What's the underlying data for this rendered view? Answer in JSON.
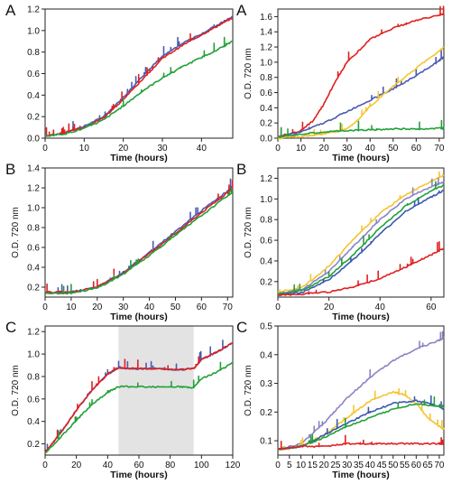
{
  "panel_labels": [
    "A",
    "B",
    "C",
    "A",
    "B",
    "C"
  ],
  "chart_data": [
    {
      "type": "line",
      "panel": "A",
      "xlabel": "Time (hours)",
      "ylabel": "",
      "xlim": [
        0,
        48
      ],
      "ylim": [
        0,
        1.2
      ],
      "xticks": [
        0,
        10,
        20,
        30,
        40
      ],
      "yticks": [
        0,
        0.2,
        0.4,
        0.6,
        0.8,
        1.0,
        1.2
      ],
      "tick_labels_y": [
        "0.0",
        "0.2",
        "0.4",
        "0.6",
        "0.8",
        "1.0",
        "1.2"
      ],
      "series": [
        {
          "color": "#4a5bb0",
          "x": [
            0,
            5,
            10,
            15,
            20,
            25,
            30,
            35,
            40,
            45,
            48
          ],
          "y": [
            0.02,
            0.05,
            0.11,
            0.2,
            0.38,
            0.58,
            0.76,
            0.88,
            0.97,
            1.07,
            1.13
          ]
        },
        {
          "color": "#e02020",
          "x": [
            0,
            5,
            10,
            15,
            20,
            25,
            30,
            35,
            40,
            45,
            48
          ],
          "y": [
            0.02,
            0.05,
            0.1,
            0.19,
            0.36,
            0.55,
            0.74,
            0.86,
            0.96,
            1.06,
            1.12
          ]
        },
        {
          "color": "#22a038",
          "x": [
            0,
            5,
            10,
            15,
            20,
            25,
            30,
            35,
            40,
            45,
            48
          ],
          "y": [
            0.02,
            0.04,
            0.09,
            0.17,
            0.3,
            0.44,
            0.56,
            0.66,
            0.75,
            0.84,
            0.9
          ]
        }
      ]
    },
    {
      "type": "line",
      "panel": "B",
      "xlabel": "Time (hours)",
      "ylabel": "O.D. 720 nm",
      "xlim": [
        0,
        72
      ],
      "ylim": [
        0.1,
        1.4
      ],
      "xticks": [
        0,
        10,
        20,
        30,
        40,
        50,
        60,
        70
      ],
      "yticks": [
        0.2,
        0.4,
        0.6,
        0.8,
        1.0,
        1.2,
        1.4
      ],
      "tick_labels_y": [
        "0.2",
        "0.4",
        "0.6",
        "0.8",
        "1.0",
        "1.2",
        "1.4"
      ],
      "series": [
        {
          "color": "#4a5bb0",
          "x": [
            0,
            10,
            20,
            30,
            40,
            50,
            60,
            70,
            72
          ],
          "y": [
            0.15,
            0.15,
            0.2,
            0.35,
            0.55,
            0.76,
            0.97,
            1.17,
            1.22
          ]
        },
        {
          "color": "#e02020",
          "x": [
            0,
            10,
            20,
            30,
            40,
            50,
            60,
            70,
            72
          ],
          "y": [
            0.15,
            0.15,
            0.2,
            0.34,
            0.54,
            0.74,
            0.95,
            1.15,
            1.19
          ]
        },
        {
          "color": "#22a038",
          "x": [
            0,
            10,
            20,
            30,
            40,
            50,
            60,
            70,
            72
          ],
          "y": [
            0.14,
            0.14,
            0.19,
            0.33,
            0.52,
            0.72,
            0.92,
            1.12,
            1.16
          ]
        }
      ]
    },
    {
      "type": "line",
      "panel": "C",
      "xlabel": "Time (hours)",
      "ylabel": "O.D. 720 nm",
      "xlim": [
        0,
        120
      ],
      "ylim": [
        0.1,
        1.25
      ],
      "xticks": [
        0,
        20,
        40,
        60,
        80,
        100,
        120
      ],
      "yticks": [
        0.2,
        0.4,
        0.6,
        0.8,
        1.0,
        1.2
      ],
      "tick_labels_y": [
        "0.2",
        "0.4",
        "0.6",
        "0.8",
        "1.0",
        "1.2"
      ],
      "shaded_region": [
        47,
        95
      ],
      "series": [
        {
          "color": "#4a5bb0",
          "x": [
            0,
            10,
            20,
            30,
            40,
            47,
            55,
            70,
            85,
            95,
            100,
            110,
            120
          ],
          "y": [
            0.12,
            0.3,
            0.5,
            0.68,
            0.82,
            0.88,
            0.87,
            0.87,
            0.86,
            0.87,
            0.95,
            1.02,
            1.1
          ]
        },
        {
          "color": "#e02020",
          "x": [
            0,
            10,
            20,
            30,
            40,
            47,
            55,
            70,
            85,
            95,
            100,
            110,
            120
          ],
          "y": [
            0.12,
            0.3,
            0.5,
            0.68,
            0.82,
            0.88,
            0.87,
            0.87,
            0.86,
            0.87,
            0.95,
            1.02,
            1.1
          ]
        },
        {
          "color": "#22a038",
          "x": [
            0,
            10,
            20,
            30,
            40,
            47,
            55,
            70,
            85,
            95,
            100,
            110,
            120
          ],
          "y": [
            0.12,
            0.26,
            0.41,
            0.55,
            0.66,
            0.71,
            0.71,
            0.71,
            0.71,
            0.7,
            0.78,
            0.84,
            0.92
          ]
        }
      ]
    },
    {
      "type": "line",
      "panel": "A",
      "xlabel": "Time (hours)",
      "ylabel": "O.D. 720 nm",
      "xlim": [
        0,
        72
      ],
      "ylim": [
        0,
        1.7
      ],
      "xticks": [
        0,
        10,
        20,
        30,
        40,
        50,
        60,
        70
      ],
      "yticks": [
        0,
        0.2,
        0.4,
        0.6,
        0.8,
        1.0,
        1.2,
        1.4,
        1.6
      ],
      "tick_labels_y": [
        "0.0",
        "0.2",
        "0.4",
        "0.6",
        "0.8",
        "1.0",
        "1.2",
        "1.4",
        "1.6"
      ],
      "series": [
        {
          "color": "#e02020",
          "x": [
            0,
            10,
            15,
            20,
            25,
            30,
            40,
            50,
            60,
            70,
            72
          ],
          "y": [
            0.02,
            0.1,
            0.22,
            0.45,
            0.75,
            1.0,
            1.3,
            1.45,
            1.55,
            1.62,
            1.64
          ]
        },
        {
          "color": "#4a5bb0",
          "x": [
            0,
            10,
            20,
            30,
            40,
            50,
            60,
            70,
            72
          ],
          "y": [
            0.02,
            0.08,
            0.2,
            0.35,
            0.5,
            0.65,
            0.82,
            1.02,
            1.07
          ]
        },
        {
          "color": "#f4c430",
          "x": [
            0,
            10,
            20,
            30,
            35,
            40,
            50,
            60,
            70,
            72
          ],
          "y": [
            0.0,
            0.02,
            0.05,
            0.12,
            0.25,
            0.42,
            0.68,
            0.92,
            1.15,
            1.2
          ]
        },
        {
          "color": "#22a038",
          "x": [
            0,
            10,
            20,
            30,
            40,
            50,
            60,
            70,
            72
          ],
          "y": [
            0.02,
            0.05,
            0.08,
            0.1,
            0.11,
            0.12,
            0.12,
            0.13,
            0.13
          ]
        }
      ]
    },
    {
      "type": "line",
      "panel": "B",
      "xlabel": "Time (hours)",
      "ylabel": "O.D. 720 nm",
      "xlim": [
        0,
        65
      ],
      "ylim": [
        0.05,
        1.3
      ],
      "xticks": [
        0,
        20,
        40,
        60
      ],
      "yticks": [
        0.2,
        0.4,
        0.6,
        0.8,
        1.0,
        1.2
      ],
      "tick_labels_y": [
        "0.2",
        "0.4",
        "0.6",
        "0.8",
        "1.0",
        "1.2"
      ],
      "series": [
        {
          "color": "#f4c430",
          "x": [
            0,
            10,
            20,
            30,
            40,
            50,
            60,
            65
          ],
          "y": [
            0.1,
            0.15,
            0.35,
            0.62,
            0.86,
            1.04,
            1.17,
            1.23
          ]
        },
        {
          "color": "#8a84c4",
          "x": [
            0,
            10,
            20,
            30,
            40,
            50,
            60,
            65
          ],
          "y": [
            0.08,
            0.13,
            0.3,
            0.55,
            0.8,
            1.0,
            1.12,
            1.16
          ]
        },
        {
          "color": "#22a038",
          "x": [
            0,
            10,
            20,
            30,
            40,
            50,
            60,
            65
          ],
          "y": [
            0.08,
            0.12,
            0.25,
            0.47,
            0.72,
            0.93,
            1.08,
            1.13
          ]
        },
        {
          "color": "#3d58b0",
          "x": [
            0,
            10,
            20,
            30,
            40,
            50,
            60,
            65
          ],
          "y": [
            0.07,
            0.1,
            0.22,
            0.42,
            0.66,
            0.88,
            1.02,
            1.08
          ]
        },
        {
          "color": "#e02020",
          "x": [
            0,
            10,
            20,
            30,
            40,
            50,
            60,
            65
          ],
          "y": [
            0.07,
            0.08,
            0.1,
            0.15,
            0.23,
            0.34,
            0.46,
            0.52
          ]
        }
      ]
    },
    {
      "type": "line",
      "panel": "C",
      "xlabel": "Time (hours)",
      "ylabel": "O.D. 720 nm",
      "xlim": [
        0,
        72
      ],
      "ylim": [
        0.05,
        0.5
      ],
      "xticks": [
        0,
        5,
        10,
        15,
        20,
        25,
        30,
        35,
        40,
        45,
        50,
        55,
        60,
        65,
        70
      ],
      "yticks": [
        0.1,
        0.2,
        0.3,
        0.4,
        0.5
      ],
      "tick_labels_y": [
        "0.1",
        "0.2",
        "0.3",
        "0.4",
        "0.5"
      ],
      "series": [
        {
          "color": "#8a84c4",
          "x": [
            0,
            10,
            20,
            30,
            40,
            50,
            60,
            70,
            72
          ],
          "y": [
            0.07,
            0.09,
            0.16,
            0.25,
            0.32,
            0.38,
            0.42,
            0.45,
            0.46
          ]
        },
        {
          "color": "#f4c430",
          "x": [
            0,
            10,
            20,
            30,
            40,
            50,
            55,
            60,
            65,
            70,
            72
          ],
          "y": [
            0.07,
            0.08,
            0.12,
            0.18,
            0.24,
            0.27,
            0.26,
            0.23,
            0.18,
            0.15,
            0.14
          ]
        },
        {
          "color": "#3d58b0",
          "x": [
            0,
            10,
            20,
            30,
            40,
            50,
            60,
            70,
            72
          ],
          "y": [
            0.07,
            0.08,
            0.12,
            0.16,
            0.2,
            0.23,
            0.24,
            0.22,
            0.21
          ]
        },
        {
          "color": "#22a038",
          "x": [
            0,
            10,
            20,
            30,
            40,
            50,
            60,
            70,
            72
          ],
          "y": [
            0.07,
            0.08,
            0.11,
            0.15,
            0.18,
            0.21,
            0.23,
            0.22,
            0.22
          ]
        },
        {
          "color": "#e02020",
          "x": [
            0,
            10,
            20,
            30,
            40,
            50,
            60,
            70,
            72
          ],
          "y": [
            0.07,
            0.08,
            0.08,
            0.09,
            0.09,
            0.09,
            0.09,
            0.09,
            0.09
          ]
        }
      ]
    }
  ]
}
